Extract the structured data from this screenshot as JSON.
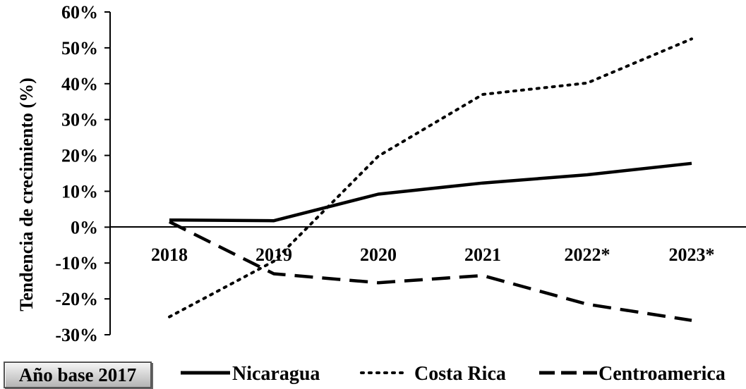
{
  "badge": {
    "label": "Año base 2017"
  },
  "chart_data": {
    "type": "line",
    "categories": [
      "2018",
      "2019",
      "2020",
      "2021",
      "2022*",
      "2023*"
    ],
    "ylabel": "Tendencia de crecimiento (%)",
    "ylim": [
      -30,
      60
    ],
    "yticks": [
      60,
      50,
      40,
      30,
      20,
      10,
      0,
      -10,
      -20,
      -30
    ],
    "ytick_labels": [
      "60%",
      "50%",
      "40%",
      "30%",
      "20%",
      "10%",
      "0%",
      "-10%",
      "-20%",
      "-30%"
    ],
    "series": [
      {
        "name": "Nicaragua",
        "style": "solid",
        "values": [
          2.0,
          1.8,
          9.2,
          12.3,
          14.6,
          17.8
        ]
      },
      {
        "name": "Costa Rica",
        "style": "dotted",
        "values": [
          -25.0,
          -9.5,
          19.8,
          37.0,
          40.2,
          52.5
        ]
      },
      {
        "name": "Centroamerica",
        "style": "dashed",
        "values": [
          1.5,
          -13.0,
          -15.5,
          -13.5,
          -21.5,
          -26.0
        ]
      }
    ],
    "legend": "bottom",
    "grid": false,
    "line_color": "#000000"
  }
}
